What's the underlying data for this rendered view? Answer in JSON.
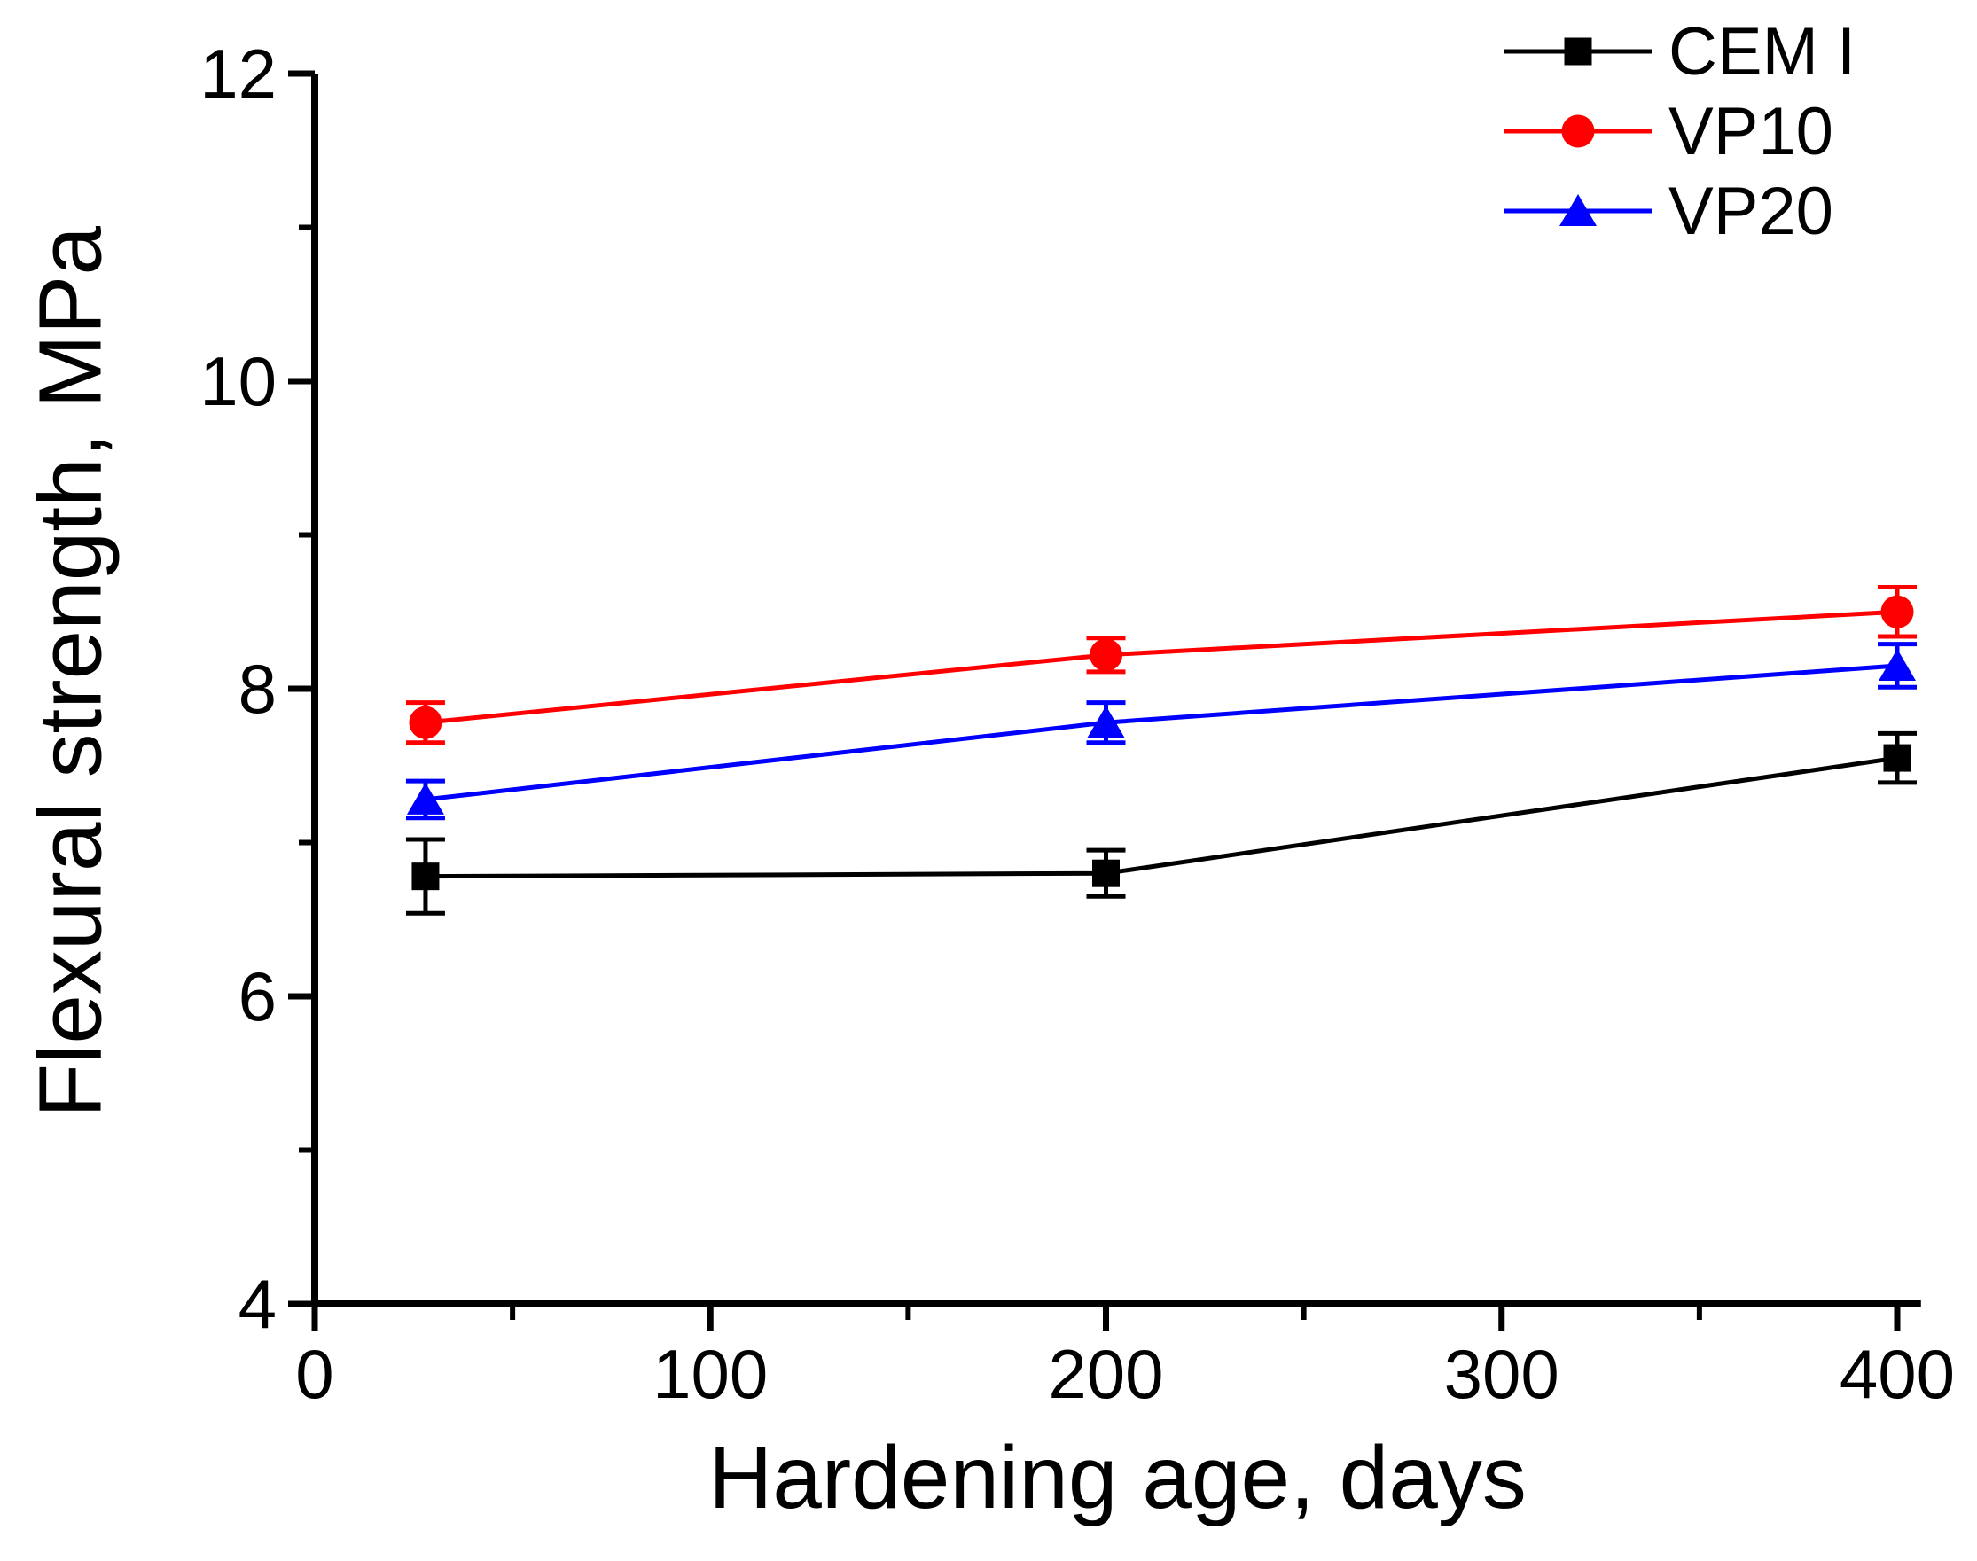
{
  "chart_data": {
    "type": "line",
    "title": "",
    "xlabel": "Hardening age, days",
    "ylabel": "Flexural strength, MPa",
    "xlim": [
      0,
      406
    ],
    "ylim": [
      4,
      12
    ],
    "xticks": [
      0,
      100,
      200,
      300,
      400
    ],
    "xticks_minor": [
      50,
      150,
      250,
      350
    ],
    "yticks": [
      4,
      6,
      8,
      10,
      12
    ],
    "yticks_minor": [
      5,
      7,
      9,
      11
    ],
    "grid": false,
    "legend_position": "top-right",
    "background": "#FFFFFF",
    "axis_color": "#000000",
    "x": [
      28,
      200,
      400
    ],
    "series": [
      {
        "name": "CEM I",
        "color": "#000000",
        "marker": "square",
        "values": [
          6.78,
          6.8,
          7.55
        ],
        "errors": [
          0.24,
          0.15,
          0.16
        ]
      },
      {
        "name": "VP10",
        "color": "#FF0000",
        "marker": "circle",
        "values": [
          7.78,
          8.22,
          8.5
        ],
        "errors": [
          0.13,
          0.11,
          0.16
        ]
      },
      {
        "name": "VP20",
        "color": "#0000FF",
        "marker": "triangle",
        "values": [
          7.28,
          7.78,
          8.15
        ],
        "errors": [
          0.12,
          0.13,
          0.14
        ]
      }
    ]
  }
}
